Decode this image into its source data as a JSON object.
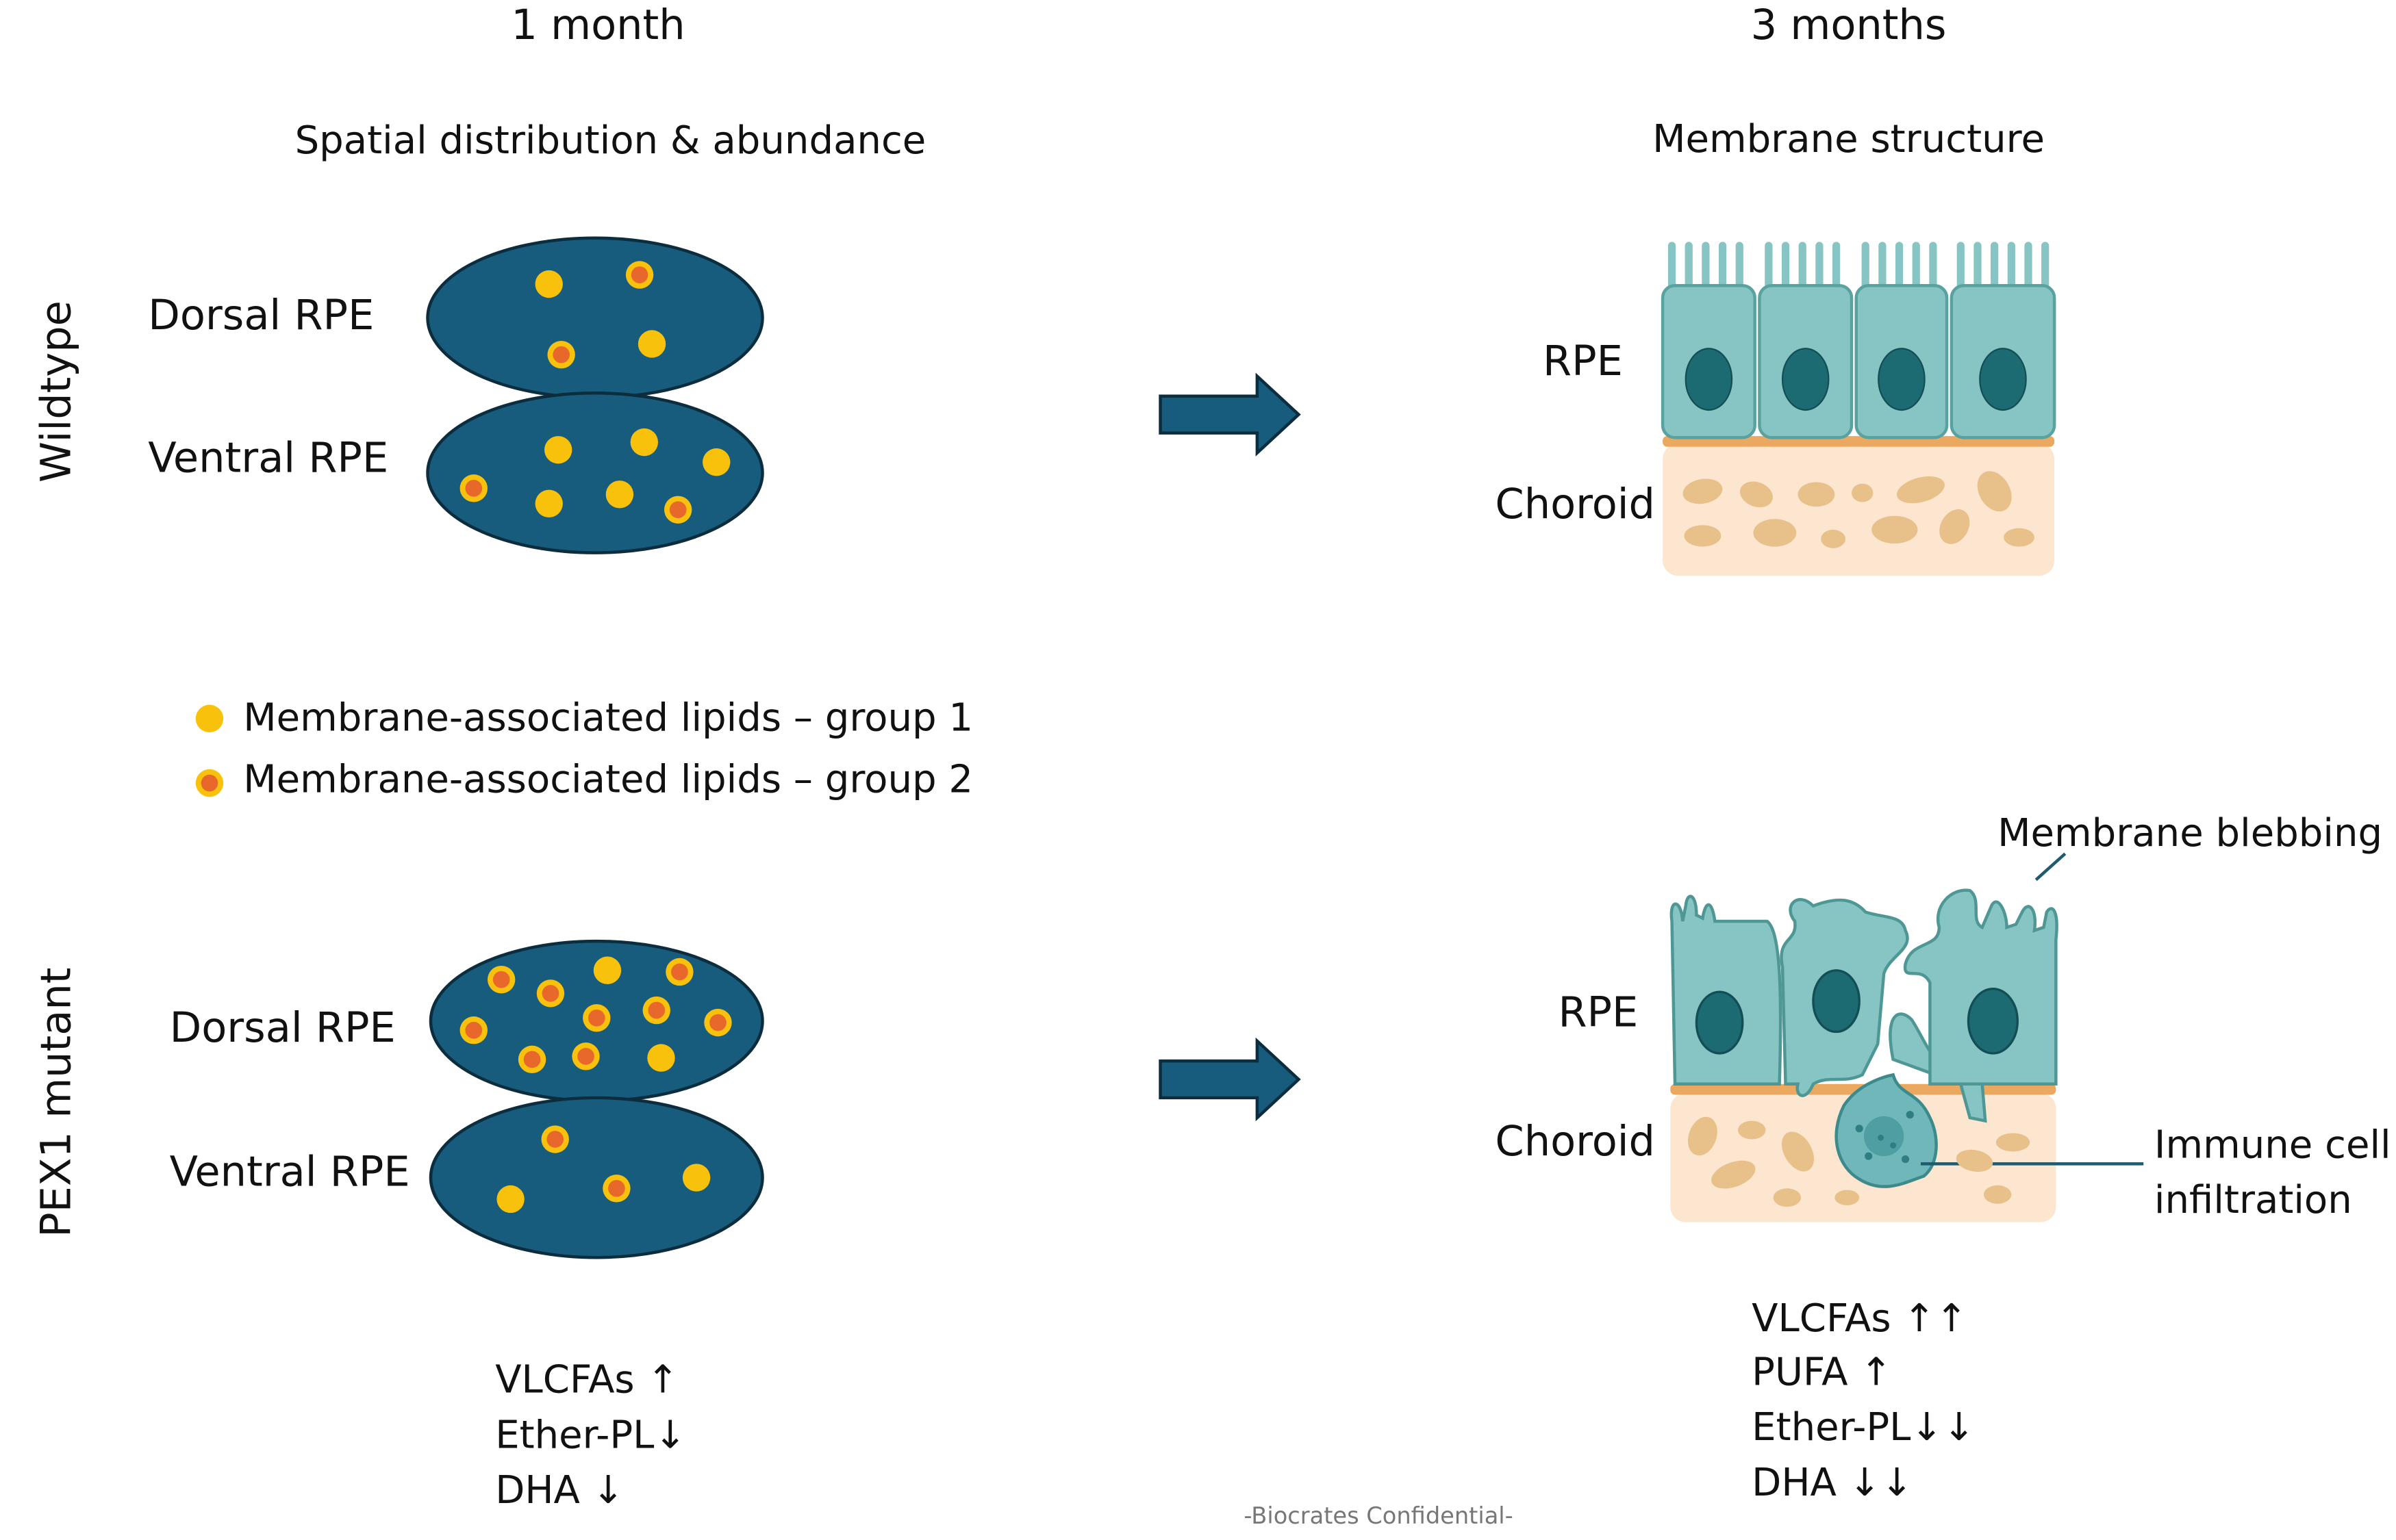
{
  "columns": [
    "1 month",
    "3 months"
  ],
  "panel_titles": [
    "Spatial distribution & abundance",
    "Membrane structure"
  ],
  "rows": [
    {
      "label": "Wildtype",
      "left": [
        "Dorsal RPE",
        "Ventral RPE"
      ],
      "right": [
        "RPE",
        "Choroid"
      ]
    },
    {
      "label": "PEX1 mutant",
      "left": [
        "Dorsal RPE",
        "Ventral RPE"
      ],
      "right": [
        "RPE",
        "Choroid"
      ],
      "annotations": [
        "Membrane blebbing",
        [
          "Immune cell",
          "infiltration"
        ]
      ],
      "changes_1_month": [
        "VLCFAs ↑",
        "Ether-PL↓",
        "DHA ↓"
      ],
      "changes_3_months": [
        "VLCFAs ↑↑",
        "PUFA ↑",
        "Ether-PL↓↓",
        "DHA ↓↓"
      ]
    }
  ],
  "legend": [
    "Membrane-associated lipids – group 1",
    "Membrane-associated lipids – group 2"
  ],
  "footer": "-Biocrates Confidential-"
}
